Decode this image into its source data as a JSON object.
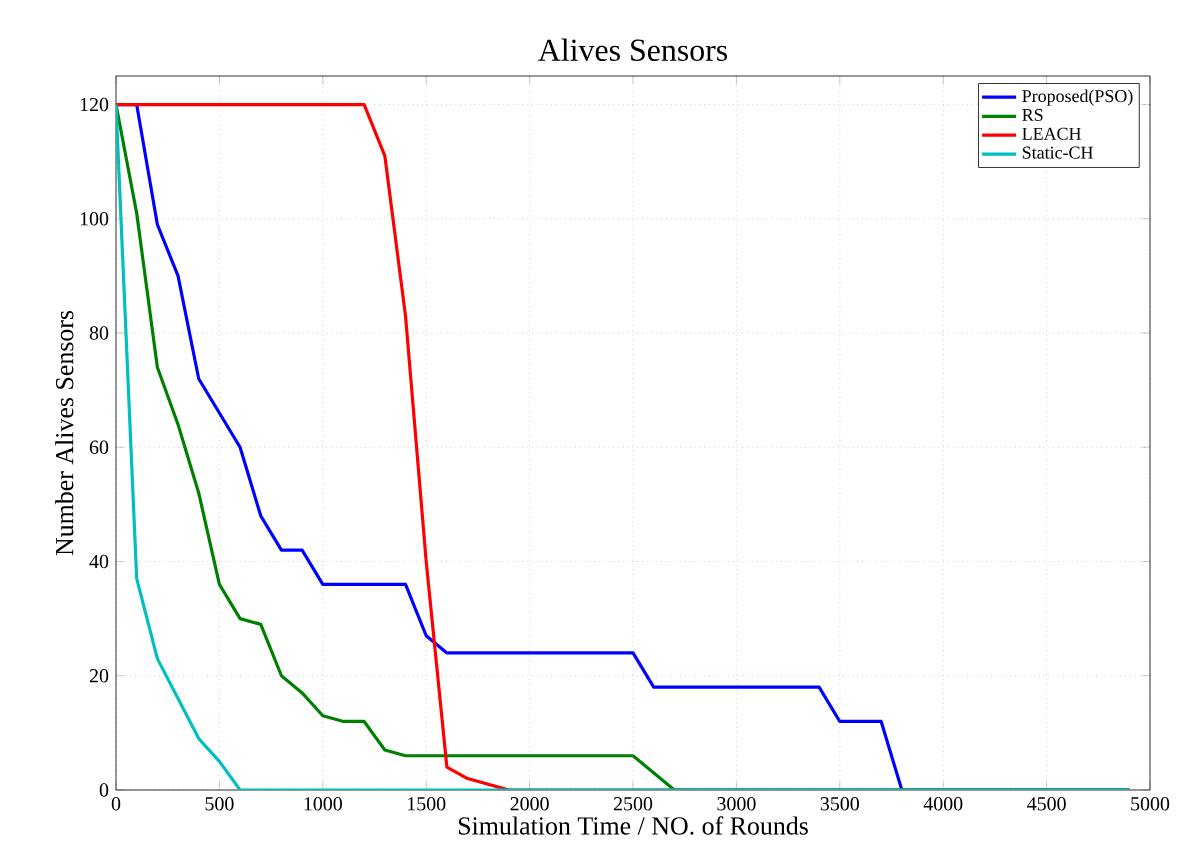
{
  "chart_data": {
    "type": "line",
    "title": "Alives Sensors",
    "xlabel": "Simulation Time / NO. of Rounds",
    "ylabel": "Number Alives Sensors",
    "xlim": [
      0,
      5000
    ],
    "ylim": [
      0,
      125
    ],
    "xticks": [
      0,
      500,
      1000,
      1500,
      2000,
      2500,
      3000,
      3500,
      4000,
      4500,
      5000
    ],
    "yticks": [
      0,
      20,
      40,
      60,
      80,
      100,
      120
    ],
    "grid": true,
    "legend": "top right",
    "marker": "none",
    "line_style": "solid",
    "series": [
      {
        "name": "Proposed(PSO)",
        "color": "#0000ff",
        "x": [
          0,
          100,
          200,
          300,
          400,
          500,
          600,
          700,
          800,
          900,
          1000,
          1400,
          1500,
          1600,
          2500,
          2600,
          3400,
          3500,
          3700,
          3800,
          4900
        ],
        "values": [
          120,
          120,
          99,
          90,
          72,
          66,
          60,
          48,
          42,
          42,
          36,
          36,
          27,
          24,
          24,
          18,
          18,
          12,
          12,
          0,
          0
        ]
      },
      {
        "name": "RS",
        "color": "#008000",
        "x": [
          0,
          100,
          200,
          300,
          400,
          500,
          600,
          700,
          800,
          900,
          1000,
          1100,
          1200,
          1300,
          1400,
          2500,
          2700,
          4900
        ],
        "values": [
          120,
          101,
          74,
          64,
          52,
          36,
          30,
          29,
          20,
          17,
          13,
          12,
          12,
          7,
          6,
          6,
          0,
          0
        ]
      },
      {
        "name": "LEACH",
        "color": "#ff0000",
        "x": [
          0,
          1200,
          1300,
          1400,
          1500,
          1600,
          1700,
          1800,
          1900,
          4900
        ],
        "values": [
          120,
          120,
          111,
          83,
          40,
          4,
          2,
          1,
          0,
          0
        ]
      },
      {
        "name": "Static-CH",
        "color": "#00bfbf",
        "x": [
          0,
          100,
          200,
          300,
          400,
          500,
          600,
          4900
        ],
        "values": [
          120,
          37,
          23,
          16,
          9,
          5,
          0,
          0
        ]
      }
    ]
  }
}
